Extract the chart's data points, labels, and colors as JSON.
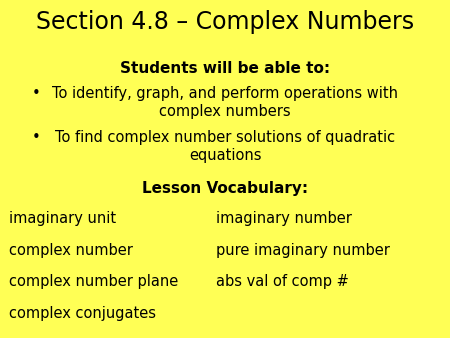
{
  "background_color": "#FFFF55",
  "title": "Section 4.8 – Complex Numbers",
  "title_fontsize": 17,
  "subtitle": "Students will be able to:",
  "subtitle_fontsize": 11,
  "bullet1_bullet": "•",
  "bullet1_text": "To identify, graph, and perform operations with\ncomplex numbers",
  "bullet2_bullet": "•",
  "bullet2_text": "To find complex number solutions of quadratic\nequations",
  "section2_title": "Lesson Vocabulary:",
  "vocab_left": [
    "imaginary unit",
    "complex number",
    "complex number plane",
    "complex conjugates"
  ],
  "vocab_right": [
    "imaginary number",
    "pure imaginary number",
    "abs val of comp #",
    ""
  ],
  "text_color": "#000000",
  "body_fontsize": 10.5,
  "vocab_fontsize": 10.5
}
